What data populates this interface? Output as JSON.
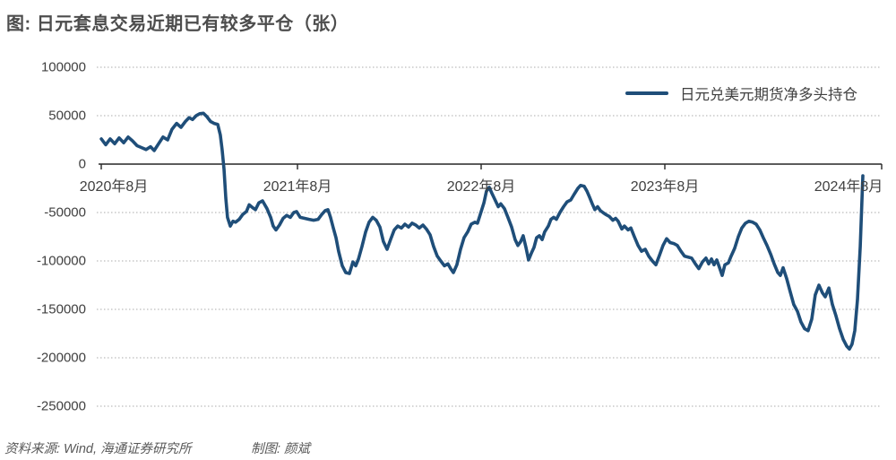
{
  "title": "图: 日元套息交易近期已有较多平仓（张）",
  "legend": {
    "label": "日元兑美元期货净多头持仓"
  },
  "footer": {
    "source": "资料来源: Wind, 海通证券研究所",
    "credit": "制图: 颜斌"
  },
  "colors": {
    "line": "#1F4E79",
    "axis": "#262626",
    "grid": "#ABABAB",
    "text": "#404040",
    "title": "#4D4D4D"
  },
  "chart_data": {
    "type": "line",
    "title": "日元套息交易近期已有较多平仓（张）",
    "unit": "张",
    "legend_position": "top-right",
    "grid": "dotted-horizontal",
    "ylim": [
      -250000,
      100000
    ],
    "y_ticks": [
      100000,
      50000,
      0,
      -50000,
      -100000,
      -150000,
      -200000,
      -250000
    ],
    "x_ticks": [
      {
        "t": 2020.583,
        "label": "2020年8月"
      },
      {
        "t": 2021.583,
        "label": "2021年8月"
      },
      {
        "t": 2022.583,
        "label": "2022年8月"
      },
      {
        "t": 2023.583,
        "label": "2023年8月"
      },
      {
        "t": 2024.583,
        "label": "2024年8月"
      }
    ],
    "series": [
      {
        "name": "日元兑美元期货净多头持仓",
        "points": [
          [
            2020.515,
            26000
          ],
          [
            2020.539,
            20000
          ],
          [
            2020.563,
            26000
          ],
          [
            2020.588,
            21000
          ],
          [
            2020.612,
            27000
          ],
          [
            2020.637,
            22000
          ],
          [
            2020.661,
            28000
          ],
          [
            2020.685,
            24000
          ],
          [
            2020.71,
            19000
          ],
          [
            2020.734,
            17000
          ],
          [
            2020.759,
            15000
          ],
          [
            2020.783,
            18000
          ],
          [
            2020.803,
            14000
          ],
          [
            2020.827,
            21000
          ],
          [
            2020.851,
            28000
          ],
          [
            2020.876,
            25000
          ],
          [
            2020.9,
            36000
          ],
          [
            2020.925,
            42000
          ],
          [
            2020.949,
            38000
          ],
          [
            2020.973,
            44000
          ],
          [
            2020.993,
            48000
          ],
          [
            2021.012,
            46000
          ],
          [
            2021.032,
            50000
          ],
          [
            2021.051,
            52000
          ],
          [
            2021.071,
            52500
          ],
          [
            2021.09,
            49000
          ],
          [
            2021.11,
            44000
          ],
          [
            2021.129,
            42000
          ],
          [
            2021.149,
            41000
          ],
          [
            2021.163,
            30000
          ],
          [
            2021.173,
            15000
          ],
          [
            2021.183,
            -5000
          ],
          [
            2021.193,
            -35000
          ],
          [
            2021.202,
            -55000
          ],
          [
            2021.217,
            -64000
          ],
          [
            2021.232,
            -59000
          ],
          [
            2021.246,
            -60000
          ],
          [
            2021.266,
            -57000
          ],
          [
            2021.285,
            -52000
          ],
          [
            2021.305,
            -49000
          ],
          [
            2021.32,
            -42000
          ],
          [
            2021.339,
            -45000
          ],
          [
            2021.354,
            -47000
          ],
          [
            2021.373,
            -40000
          ],
          [
            2021.393,
            -38000
          ],
          [
            2021.417,
            -46000
          ],
          [
            2021.437,
            -55000
          ],
          [
            2021.451,
            -64000
          ],
          [
            2021.466,
            -68000
          ],
          [
            2021.485,
            -63000
          ],
          [
            2021.505,
            -56000
          ],
          [
            2021.524,
            -53000
          ],
          [
            2021.544,
            -55000
          ],
          [
            2021.563,
            -50000
          ],
          [
            2021.578,
            -49000
          ],
          [
            2021.598,
            -55000
          ],
          [
            2021.622,
            -56000
          ],
          [
            2021.646,
            -57000
          ],
          [
            2021.671,
            -58000
          ],
          [
            2021.695,
            -57000
          ],
          [
            2021.715,
            -52000
          ],
          [
            2021.734,
            -48000
          ],
          [
            2021.749,
            -47000
          ],
          [
            2021.763,
            -55000
          ],
          [
            2021.778,
            -66000
          ],
          [
            2021.793,
            -76000
          ],
          [
            2021.807,
            -90000
          ],
          [
            2021.827,
            -105000
          ],
          [
            2021.846,
            -112000
          ],
          [
            2021.866,
            -113000
          ],
          [
            2021.885,
            -101000
          ],
          [
            2021.9,
            -105000
          ],
          [
            2021.915,
            -98000
          ],
          [
            2021.934,
            -85000
          ],
          [
            2021.954,
            -70000
          ],
          [
            2021.973,
            -60000
          ],
          [
            2021.993,
            -55000
          ],
          [
            2022.012,
            -58000
          ],
          [
            2022.032,
            -65000
          ],
          [
            2022.051,
            -80000
          ],
          [
            2022.071,
            -88000
          ],
          [
            2022.09,
            -78000
          ],
          [
            2022.11,
            -68000
          ],
          [
            2022.129,
            -64000
          ],
          [
            2022.149,
            -66000
          ],
          [
            2022.168,
            -62000
          ],
          [
            2022.188,
            -65000
          ],
          [
            2022.207,
            -61000
          ],
          [
            2022.227,
            -63000
          ],
          [
            2022.246,
            -66000
          ],
          [
            2022.266,
            -63000
          ],
          [
            2022.285,
            -67000
          ],
          [
            2022.305,
            -73000
          ],
          [
            2022.324,
            -85000
          ],
          [
            2022.344,
            -95000
          ],
          [
            2022.363,
            -100000
          ],
          [
            2022.383,
            -105000
          ],
          [
            2022.402,
            -103000
          ],
          [
            2022.417,
            -108000
          ],
          [
            2022.432,
            -112000
          ],
          [
            2022.451,
            -104000
          ],
          [
            2022.471,
            -88000
          ],
          [
            2022.49,
            -76000
          ],
          [
            2022.51,
            -70000
          ],
          [
            2022.529,
            -62000
          ],
          [
            2022.549,
            -60000
          ],
          [
            2022.563,
            -61000
          ],
          [
            2022.578,
            -52000
          ],
          [
            2022.598,
            -40000
          ],
          [
            2022.612,
            -28000
          ],
          [
            2022.627,
            -24000
          ],
          [
            2022.641,
            -30000
          ],
          [
            2022.656,
            -36000
          ],
          [
            2022.676,
            -44000
          ],
          [
            2022.69,
            -41000
          ],
          [
            2022.71,
            -46000
          ],
          [
            2022.729,
            -55000
          ],
          [
            2022.749,
            -65000
          ],
          [
            2022.768,
            -78000
          ],
          [
            2022.783,
            -84000
          ],
          [
            2022.798,
            -80000
          ],
          [
            2022.812,
            -74000
          ],
          [
            2022.827,
            -86000
          ],
          [
            2022.841,
            -99000
          ],
          [
            2022.856,
            -92000
          ],
          [
            2022.871,
            -86000
          ],
          [
            2022.885,
            -76000
          ],
          [
            2022.9,
            -74000
          ],
          [
            2022.915,
            -78000
          ],
          [
            2022.929,
            -70000
          ],
          [
            2022.949,
            -64000
          ],
          [
            2022.963,
            -57000
          ],
          [
            2022.978,
            -55000
          ],
          [
            2022.993,
            -57000
          ],
          [
            2023.012,
            -50000
          ],
          [
            2023.032,
            -44000
          ],
          [
            2023.051,
            -39000
          ],
          [
            2023.071,
            -37000
          ],
          [
            2023.09,
            -31000
          ],
          [
            2023.11,
            -25000
          ],
          [
            2023.124,
            -22000
          ],
          [
            2023.144,
            -23000
          ],
          [
            2023.159,
            -28000
          ],
          [
            2023.173,
            -34000
          ],
          [
            2023.188,
            -41000
          ],
          [
            2023.202,
            -47000
          ],
          [
            2023.217,
            -44000
          ],
          [
            2023.232,
            -48000
          ],
          [
            2023.246,
            -50000
          ],
          [
            2023.261,
            -52000
          ],
          [
            2023.28,
            -54000
          ],
          [
            2023.3,
            -58000
          ],
          [
            2023.315,
            -56000
          ],
          [
            2023.329,
            -59000
          ],
          [
            2023.349,
            -67000
          ],
          [
            2023.363,
            -64000
          ],
          [
            2023.383,
            -68000
          ],
          [
            2023.398,
            -66000
          ],
          [
            2023.417,
            -75000
          ],
          [
            2023.437,
            -84000
          ],
          [
            2023.456,
            -90000
          ],
          [
            2023.476,
            -88000
          ],
          [
            2023.495,
            -95000
          ],
          [
            2023.515,
            -100000
          ],
          [
            2023.534,
            -104000
          ],
          [
            2023.554,
            -94000
          ],
          [
            2023.573,
            -84000
          ],
          [
            2023.593,
            -77000
          ],
          [
            2023.612,
            -81000
          ],
          [
            2023.632,
            -82000
          ],
          [
            2023.651,
            -84000
          ],
          [
            2023.671,
            -90000
          ],
          [
            2023.69,
            -95000
          ],
          [
            2023.71,
            -96000
          ],
          [
            2023.729,
            -97000
          ],
          [
            2023.749,
            -103000
          ],
          [
            2023.768,
            -108000
          ],
          [
            2023.788,
            -101000
          ],
          [
            2023.807,
            -97000
          ],
          [
            2023.822,
            -103000
          ],
          [
            2023.837,
            -98000
          ],
          [
            2023.851,
            -104000
          ],
          [
            2023.866,
            -99000
          ],
          [
            2023.881,
            -107000
          ],
          [
            2023.895,
            -115000
          ],
          [
            2023.91,
            -104000
          ],
          [
            2023.929,
            -102000
          ],
          [
            2023.944,
            -95000
          ],
          [
            2023.963,
            -87000
          ],
          [
            2023.983,
            -75000
          ],
          [
            2024.002,
            -66000
          ],
          [
            2024.022,
            -61000
          ],
          [
            2024.041,
            -59000
          ],
          [
            2024.061,
            -60000
          ],
          [
            2024.08,
            -62000
          ],
          [
            2024.1,
            -68000
          ],
          [
            2024.119,
            -76000
          ],
          [
            2024.139,
            -84000
          ],
          [
            2024.159,
            -93000
          ],
          [
            2024.178,
            -103000
          ],
          [
            2024.198,
            -112000
          ],
          [
            2024.212,
            -115000
          ],
          [
            2024.227,
            -107000
          ],
          [
            2024.246,
            -118000
          ],
          [
            2024.266,
            -132000
          ],
          [
            2024.285,
            -145000
          ],
          [
            2024.305,
            -152000
          ],
          [
            2024.324,
            -163000
          ],
          [
            2024.344,
            -170000
          ],
          [
            2024.363,
            -172000
          ],
          [
            2024.383,
            -160000
          ],
          [
            2024.402,
            -135000
          ],
          [
            2024.422,
            -125000
          ],
          [
            2024.441,
            -133000
          ],
          [
            2024.456,
            -137000
          ],
          [
            2024.476,
            -128000
          ],
          [
            2024.495,
            -145000
          ],
          [
            2024.515,
            -157000
          ],
          [
            2024.534,
            -170000
          ],
          [
            2024.554,
            -181000
          ],
          [
            2024.573,
            -188000
          ],
          [
            2024.588,
            -191000
          ],
          [
            2024.602,
            -186000
          ],
          [
            2024.617,
            -172000
          ],
          [
            2024.632,
            -140000
          ],
          [
            2024.647,
            -85000
          ],
          [
            2024.661,
            -12000
          ]
        ]
      }
    ]
  }
}
